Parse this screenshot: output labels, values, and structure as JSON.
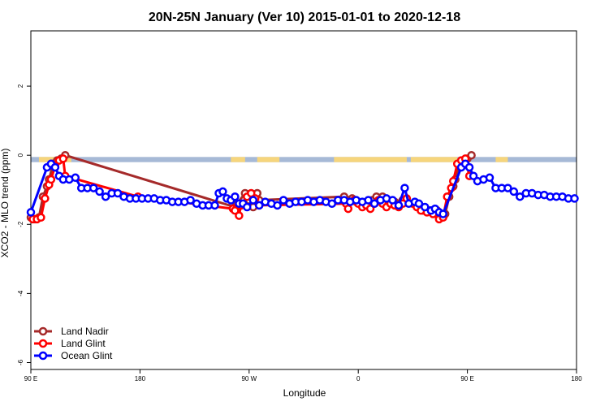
{
  "chart_data": {
    "type": "line",
    "title": "20N-25N January (Ver 10)   2015-01-01 to 2020-12-18",
    "xlabel": "Longitude",
    "ylabel": "XCO2 - MLO trend (ppm)",
    "xlim": [
      -90,
      180
    ],
    "ylim": [
      -6.2,
      3.6
    ],
    "x_ticks": [
      {
        "value": -90,
        "label": "90 E"
      },
      {
        "value": -36,
        "label": "180"
      },
      {
        "value": 18,
        "label": "90 W"
      },
      {
        "value": 72,
        "label": "0"
      },
      {
        "value": 126,
        "label": "90 E"
      },
      {
        "value": 180,
        "label": "180"
      }
    ],
    "y_ticks": [
      {
        "value": 2,
        "label": "2"
      },
      {
        "value": 0,
        "label": "0"
      },
      {
        "value": -2,
        "label": "-2"
      },
      {
        "value": -4,
        "label": "-4"
      },
      {
        "value": -6,
        "label": "-6"
      }
    ],
    "land_strip": {
      "y_top": -0.05,
      "y_bottom": -0.2,
      "ocean_color": "#a6b9d6",
      "land_color": "#f6d57c",
      "land_segments": [
        [
          -86,
          -70
        ],
        [
          9,
          16
        ],
        [
          22,
          33
        ],
        [
          60,
          96
        ],
        [
          98,
          121
        ],
        [
          140,
          146
        ]
      ]
    },
    "legend": {
      "position": "bottom-left"
    },
    "series": [
      {
        "name": "Land Nadir",
        "color": "#a52a2a",
        "points": [
          [
            -90,
            -1.8
          ],
          [
            -88,
            -1.85
          ],
          [
            -86,
            -1.8
          ],
          [
            -84,
            -1.2
          ],
          [
            -82,
            -0.9
          ],
          [
            -81,
            -0.7
          ],
          [
            -79,
            -0.25
          ],
          [
            -77,
            -0.15
          ],
          [
            -75,
            -0.1
          ],
          [
            -73,
            0.0
          ],
          [
            11,
            -1.5
          ],
          [
            12,
            -1.4
          ],
          [
            16,
            -1.1
          ],
          [
            18,
            -1.3
          ],
          [
            20,
            -1.5
          ],
          [
            22,
            -1.1
          ],
          [
            23,
            -1.3
          ],
          [
            65,
            -1.2
          ],
          [
            67,
            -1.3
          ],
          [
            69,
            -1.25
          ],
          [
            71,
            -1.35
          ],
          [
            79,
            -1.3
          ],
          [
            81,
            -1.2
          ],
          [
            84,
            -1.2
          ],
          [
            86,
            -1.3
          ],
          [
            90,
            -1.35
          ],
          [
            92,
            -1.4
          ],
          [
            94,
            -1.3
          ],
          [
            101,
            -1.45
          ],
          [
            104,
            -1.6
          ],
          [
            107,
            -1.6
          ],
          [
            111,
            -1.6
          ],
          [
            113,
            -1.8
          ],
          [
            115,
            -1.7
          ],
          [
            117,
            -1.2
          ],
          [
            119,
            -0.9
          ],
          [
            120,
            -0.7
          ],
          [
            122,
            -0.3
          ],
          [
            124,
            -0.2
          ],
          [
            126,
            -0.1
          ],
          [
            128,
            0.0
          ]
        ]
      },
      {
        "name": "Land Glint",
        "color": "#ff0000",
        "points": [
          [
            -89,
            -1.85
          ],
          [
            -87,
            -1.85
          ],
          [
            -85,
            -1.8
          ],
          [
            -83,
            -1.25
          ],
          [
            -81,
            -0.85
          ],
          [
            -80,
            -0.7
          ],
          [
            -78,
            -0.3
          ],
          [
            -76,
            -0.15
          ],
          [
            -74,
            -0.1
          ],
          [
            -73,
            -0.6
          ],
          [
            -37,
            -1.2
          ],
          [
            10,
            -1.55
          ],
          [
            11,
            -1.6
          ],
          [
            13,
            -1.75
          ],
          [
            14,
            -1.45
          ],
          [
            17,
            -1.2
          ],
          [
            19,
            -1.1
          ],
          [
            21,
            -1.25
          ],
          [
            23,
            -1.45
          ],
          [
            66,
            -1.4
          ],
          [
            67,
            -1.55
          ],
          [
            68,
            -1.35
          ],
          [
            70,
            -1.3
          ],
          [
            72,
            -1.4
          ],
          [
            74,
            -1.5
          ],
          [
            76,
            -1.45
          ],
          [
            78,
            -1.55
          ],
          [
            80,
            -1.4
          ],
          [
            82,
            -1.3
          ],
          [
            84,
            -1.4
          ],
          [
            86,
            -1.5
          ],
          [
            88,
            -1.4
          ],
          [
            90,
            -1.45
          ],
          [
            92,
            -1.5
          ],
          [
            94,
            -1.4
          ],
          [
            96,
            -1.25
          ],
          [
            99,
            -1.4
          ],
          [
            101,
            -1.5
          ],
          [
            103,
            -1.6
          ],
          [
            106,
            -1.65
          ],
          [
            109,
            -1.7
          ],
          [
            112,
            -1.85
          ],
          [
            114,
            -1.8
          ],
          [
            116,
            -1.2
          ],
          [
            118,
            -0.95
          ],
          [
            119,
            -0.75
          ],
          [
            121,
            -0.25
          ],
          [
            123,
            -0.15
          ],
          [
            125,
            -0.1
          ],
          [
            127,
            -0.6
          ]
        ]
      },
      {
        "name": "Ocean Glint",
        "color": "#0000ff",
        "points": [
          [
            -90,
            -1.65
          ],
          [
            -82,
            -0.35
          ],
          [
            -80,
            -0.25
          ],
          [
            -78,
            -0.35
          ],
          [
            -76,
            -0.6
          ],
          [
            -74,
            -0.7
          ],
          [
            -71,
            -0.7
          ],
          [
            -68,
            -0.65
          ],
          [
            -65,
            -0.95
          ],
          [
            -62,
            -0.95
          ],
          [
            -59,
            -0.95
          ],
          [
            -56,
            -1.05
          ],
          [
            -53,
            -1.2
          ],
          [
            -50,
            -1.1
          ],
          [
            -47,
            -1.1
          ],
          [
            -44,
            -1.2
          ],
          [
            -41,
            -1.25
          ],
          [
            -38,
            -1.25
          ],
          [
            -35,
            -1.25
          ],
          [
            -32,
            -1.25
          ],
          [
            -29,
            -1.25
          ],
          [
            -26,
            -1.3
          ],
          [
            -23,
            -1.3
          ],
          [
            -20,
            -1.35
          ],
          [
            -17,
            -1.35
          ],
          [
            -14,
            -1.35
          ],
          [
            -11,
            -1.3
          ],
          [
            -8,
            -1.4
          ],
          [
            -5,
            -1.45
          ],
          [
            -2,
            -1.45
          ],
          [
            1,
            -1.45
          ],
          [
            3,
            -1.1
          ],
          [
            5,
            -1.05
          ],
          [
            7,
            -1.25
          ],
          [
            9,
            -1.3
          ],
          [
            11,
            -1.2
          ],
          [
            13,
            -1.4
          ],
          [
            15,
            -1.4
          ],
          [
            17,
            -1.5
          ],
          [
            20,
            -1.3
          ],
          [
            23,
            -1.45
          ],
          [
            26,
            -1.35
          ],
          [
            29,
            -1.4
          ],
          [
            32,
            -1.45
          ],
          [
            35,
            -1.3
          ],
          [
            38,
            -1.4
          ],
          [
            41,
            -1.35
          ],
          [
            44,
            -1.35
          ],
          [
            47,
            -1.3
          ],
          [
            50,
            -1.35
          ],
          [
            53,
            -1.3
          ],
          [
            56,
            -1.35
          ],
          [
            59,
            -1.4
          ],
          [
            62,
            -1.3
          ],
          [
            65,
            -1.3
          ],
          [
            68,
            -1.35
          ],
          [
            71,
            -1.3
          ],
          [
            74,
            -1.35
          ],
          [
            77,
            -1.3
          ],
          [
            80,
            -1.4
          ],
          [
            83,
            -1.3
          ],
          [
            86,
            -1.25
          ],
          [
            89,
            -1.3
          ],
          [
            92,
            -1.45
          ],
          [
            95,
            -0.95
          ],
          [
            97,
            -1.4
          ],
          [
            100,
            -1.35
          ],
          [
            102,
            -1.4
          ],
          [
            105,
            -1.5
          ],
          [
            108,
            -1.6
          ],
          [
            110,
            -1.55
          ],
          [
            112,
            -1.65
          ],
          [
            114,
            -1.7
          ],
          [
            123,
            -0.35
          ],
          [
            125,
            -0.25
          ],
          [
            127,
            -0.35
          ],
          [
            129,
            -0.6
          ],
          [
            131,
            -0.75
          ],
          [
            134,
            -0.7
          ],
          [
            137,
            -0.65
          ],
          [
            140,
            -0.95
          ],
          [
            143,
            -0.95
          ],
          [
            146,
            -0.95
          ],
          [
            149,
            -1.05
          ],
          [
            152,
            -1.2
          ],
          [
            155,
            -1.1
          ],
          [
            158,
            -1.1
          ],
          [
            161,
            -1.15
          ],
          [
            164,
            -1.15
          ],
          [
            167,
            -1.2
          ],
          [
            170,
            -1.2
          ],
          [
            173,
            -1.2
          ],
          [
            176,
            -1.25
          ],
          [
            179,
            -1.25
          ]
        ]
      }
    ]
  }
}
